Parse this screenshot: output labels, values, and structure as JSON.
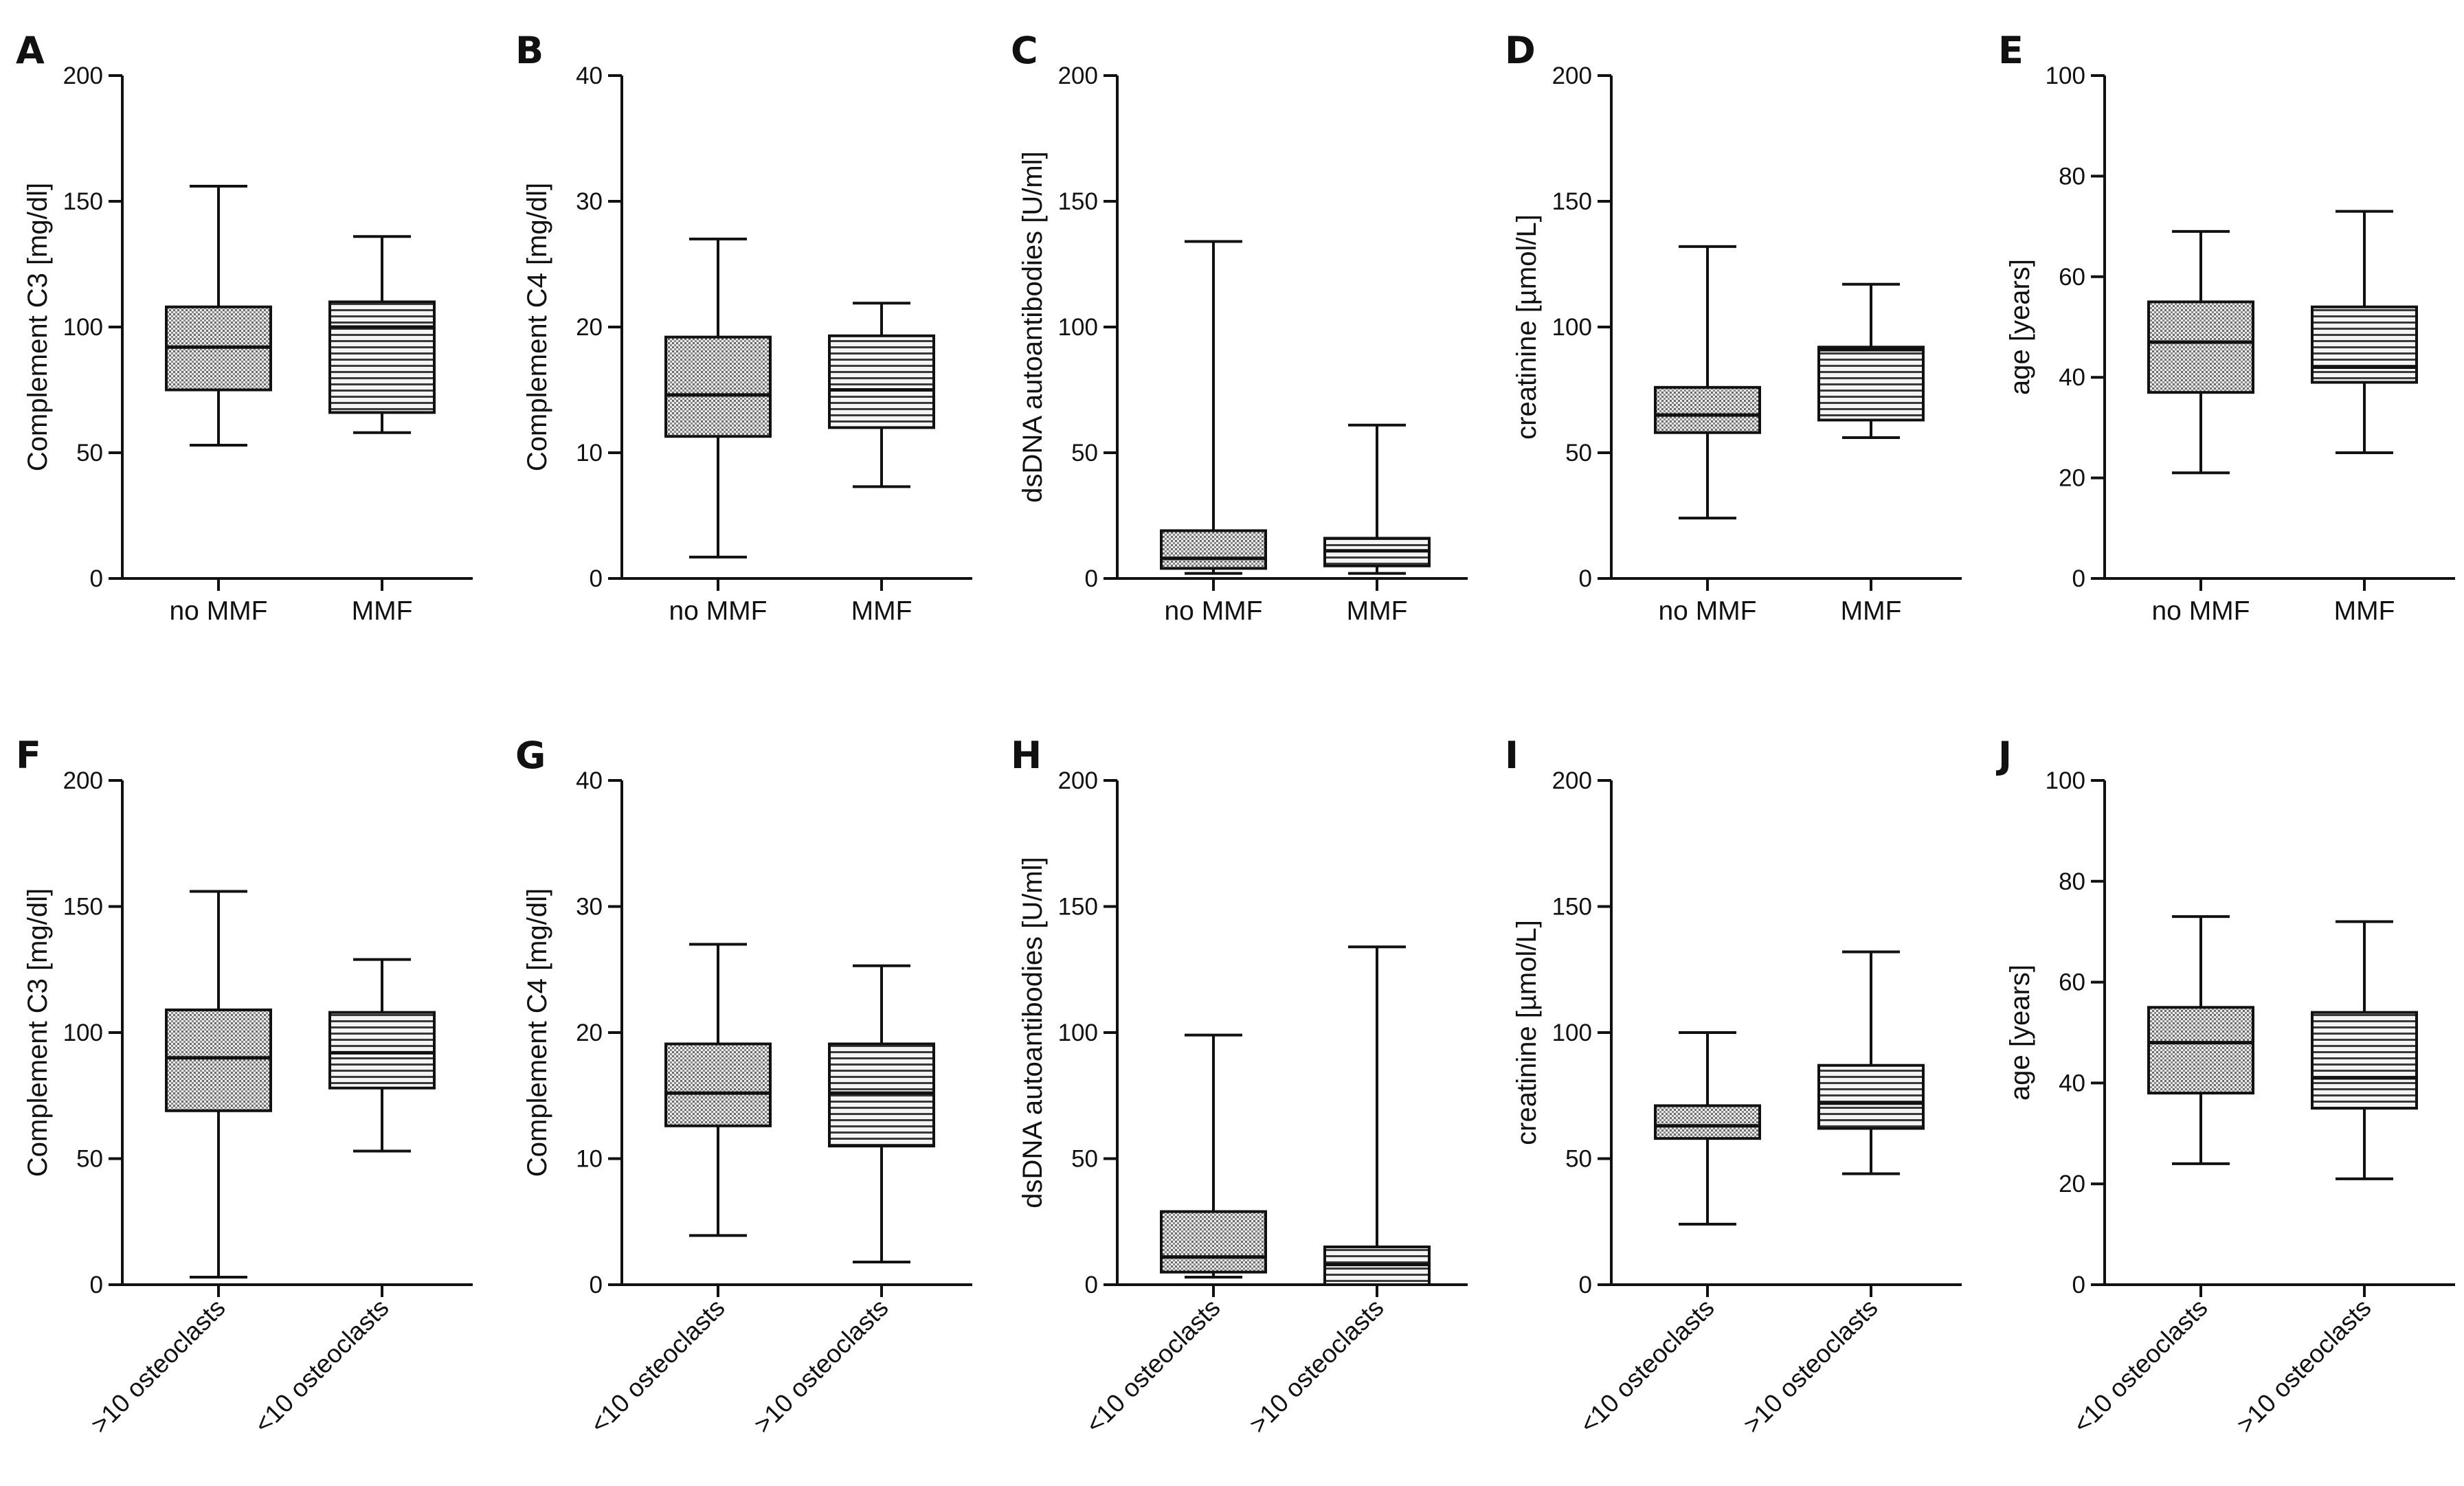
{
  "chart_data": [
    {
      "panel": "A",
      "type": "boxplot",
      "ylabel": "Complement C3 [mg/dl]",
      "ylim": [
        0,
        200
      ],
      "yticks": [
        0,
        50,
        100,
        150,
        200
      ],
      "rotate_labels": false,
      "boxes": [
        {
          "label": "no MMF",
          "min": 53,
          "q1": 75,
          "median": 92,
          "q3": 108,
          "max": 156,
          "pattern": "dots"
        },
        {
          "label": "MMF",
          "min": 58,
          "q1": 66,
          "median": 100,
          "q3": 110,
          "max": 136,
          "pattern": "lines"
        }
      ]
    },
    {
      "panel": "B",
      "type": "boxplot",
      "ylabel": "Complement C4 [mg/dl]",
      "ylim": [
        0,
        40
      ],
      "yticks": [
        0,
        10,
        20,
        30,
        40
      ],
      "rotate_labels": false,
      "boxes": [
        {
          "label": "no MMF",
          "min": 1.7,
          "q1": 11.3,
          "median": 14.6,
          "q3": 19.2,
          "max": 27,
          "pattern": "dots"
        },
        {
          "label": "MMF",
          "min": 7.3,
          "q1": 12,
          "median": 15,
          "q3": 19.3,
          "max": 21.9,
          "pattern": "lines"
        }
      ]
    },
    {
      "panel": "C",
      "type": "boxplot",
      "ylabel": "dsDNA autoantibodies [U/ml]",
      "ylim": [
        0,
        200
      ],
      "yticks": [
        0,
        50,
        100,
        150,
        200
      ],
      "rotate_labels": false,
      "boxes": [
        {
          "label": "no MMF",
          "min": 2,
          "q1": 4,
          "median": 8,
          "q3": 19,
          "max": 134,
          "pattern": "dots"
        },
        {
          "label": "MMF",
          "min": 2,
          "q1": 5,
          "median": 11,
          "q3": 16,
          "max": 61,
          "pattern": "lines"
        }
      ]
    },
    {
      "panel": "D",
      "type": "boxplot",
      "ylabel": "creatinine [µmol/L]",
      "ylim": [
        0,
        200
      ],
      "yticks": [
        0,
        50,
        100,
        150,
        200
      ],
      "rotate_labels": false,
      "boxes": [
        {
          "label": "no MMF",
          "min": 24,
          "q1": 58,
          "median": 65,
          "q3": 76,
          "max": 132,
          "pattern": "dots"
        },
        {
          "label": "MMF",
          "min": 56,
          "q1": 63,
          "median": 91,
          "q3": 92,
          "max": 117,
          "pattern": "lines"
        }
      ]
    },
    {
      "panel": "E",
      "type": "boxplot",
      "ylabel": "age [years]",
      "ylim": [
        0,
        100
      ],
      "yticks": [
        0,
        20,
        40,
        60,
        80,
        100
      ],
      "rotate_labels": false,
      "boxes": [
        {
          "label": "no MMF",
          "min": 21,
          "q1": 37,
          "median": 47,
          "q3": 55,
          "max": 69,
          "pattern": "dots"
        },
        {
          "label": "MMF",
          "min": 25,
          "q1": 39,
          "median": 42,
          "q3": 54,
          "max": 73,
          "pattern": "lines"
        }
      ]
    },
    {
      "panel": "F",
      "type": "boxplot",
      "ylabel": "Complement C3 [mg/dl]",
      "ylim": [
        0,
        200
      ],
      "yticks": [
        0,
        50,
        100,
        150,
        200
      ],
      "rotate_labels": true,
      "boxes": [
        {
          "label": ">10 osteoclasts",
          "min": 3,
          "q1": 69,
          "median": 90,
          "q3": 109,
          "max": 156,
          "pattern": "dots"
        },
        {
          "label": "<10 osteoclasts",
          "min": 53,
          "q1": 78,
          "median": 92,
          "q3": 108,
          "max": 129,
          "pattern": "lines"
        }
      ]
    },
    {
      "panel": "G",
      "type": "boxplot",
      "ylabel": "Complement C4 [mg/dl]",
      "ylim": [
        0,
        40
      ],
      "yticks": [
        0,
        10,
        20,
        30,
        40
      ],
      "rotate_labels": true,
      "boxes": [
        {
          "label": "<10 osteoclasts",
          "min": 3.9,
          "q1": 12.6,
          "median": 15.2,
          "q3": 19.1,
          "max": 27,
          "pattern": "dots"
        },
        {
          "label": ">10 osteoclasts",
          "min": 1.8,
          "q1": 11,
          "median": 15.2,
          "q3": 19.1,
          "max": 25.3,
          "pattern": "lines"
        }
      ]
    },
    {
      "panel": "H",
      "type": "boxplot",
      "ylabel": "dsDNA autoantibodies [U/ml]",
      "ylim": [
        0,
        200
      ],
      "yticks": [
        0,
        50,
        100,
        150,
        200
      ],
      "rotate_labels": true,
      "boxes": [
        {
          "label": "<10 osteoclasts",
          "min": 3,
          "q1": 5,
          "median": 11,
          "q3": 29,
          "max": 99,
          "pattern": "dots"
        },
        {
          "label": ">10 osteoclasts",
          "min": 0,
          "q1": 0,
          "median": 8,
          "q3": 15,
          "max": 134,
          "pattern": "lines"
        }
      ]
    },
    {
      "panel": "I",
      "type": "boxplot",
      "ylabel": "creatinine [µmol/L]",
      "ylim": [
        0,
        200
      ],
      "yticks": [
        0,
        50,
        100,
        150,
        200
      ],
      "rotate_labels": true,
      "boxes": [
        {
          "label": "<10 osteoclasts",
          "min": 24,
          "q1": 58,
          "median": 63,
          "q3": 71,
          "max": 100,
          "pattern": "dots"
        },
        {
          "label": ">10 osteoclasts",
          "min": 44,
          "q1": 62,
          "median": 72,
          "q3": 87,
          "max": 132,
          "pattern": "lines"
        }
      ]
    },
    {
      "panel": "J",
      "type": "boxplot",
      "ylabel": "age [years]",
      "ylim": [
        0,
        100
      ],
      "yticks": [
        0,
        20,
        40,
        60,
        80,
        100
      ],
      "rotate_labels": true,
      "boxes": [
        {
          "label": "<10 osteoclasts",
          "min": 24,
          "q1": 38,
          "median": 48,
          "q3": 55,
          "max": 73,
          "pattern": "dots"
        },
        {
          "label": ">10 osteoclasts",
          "min": 21,
          "q1": 35,
          "median": 41,
          "q3": 54,
          "max": 72,
          "pattern": "lines"
        }
      ]
    }
  ]
}
